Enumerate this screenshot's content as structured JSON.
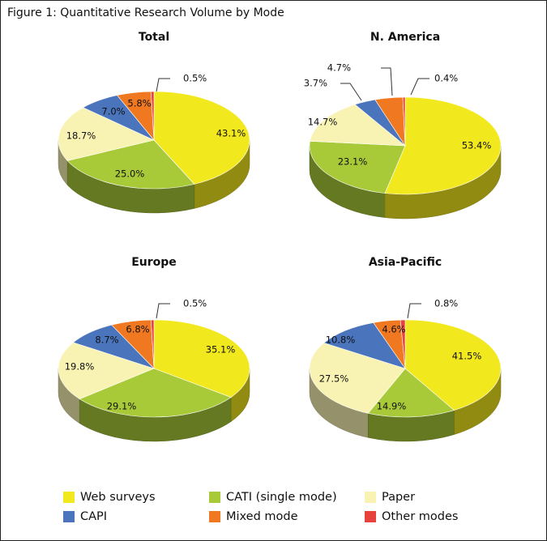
{
  "figure_title": "Figure 1: Quantitative Research Volume by Mode",
  "chart_data": [
    {
      "type": "pie",
      "title": "Total",
      "categories": [
        "Web surveys",
        "CATI (single mode)",
        "Paper",
        "CAPI",
        "Mixed mode",
        "Other modes"
      ],
      "values": [
        43.1,
        25.0,
        18.7,
        7.0,
        5.8,
        0.5
      ],
      "labels": [
        "43.1%",
        "25.0%",
        "18.7%",
        "7.0%",
        "5.8%",
        "0.5%"
      ]
    },
    {
      "type": "pie",
      "title": "N. America",
      "categories": [
        "Web surveys",
        "CATI (single mode)",
        "Paper",
        "CAPI",
        "Mixed mode",
        "Other modes"
      ],
      "values": [
        53.4,
        23.1,
        14.7,
        3.7,
        4.7,
        0.4
      ],
      "labels": [
        "53.4%",
        "23.1%",
        "14.7%",
        "3.7%",
        "4.7%",
        "0.4%"
      ]
    },
    {
      "type": "pie",
      "title": "Europe",
      "categories": [
        "Web surveys",
        "CATI (single mode)",
        "Paper",
        "CAPI",
        "Mixed mode",
        "Other modes"
      ],
      "values": [
        35.1,
        29.1,
        19.8,
        8.7,
        6.8,
        0.5
      ],
      "labels": [
        "35.1%",
        "29.1%",
        "19.8%",
        "8.7%",
        "6.8%",
        "0.5%"
      ]
    },
    {
      "type": "pie",
      "title": "Asia-Pacific",
      "categories": [
        "Web surveys",
        "CATI (single mode)",
        "Paper",
        "CAPI",
        "Mixed mode",
        "Other modes"
      ],
      "values": [
        41.5,
        14.9,
        27.5,
        10.8,
        4.6,
        0.8
      ],
      "labels": [
        "41.5%",
        "14.9%",
        "27.5%",
        "10.8%",
        "4.6%",
        "0.8%"
      ]
    }
  ],
  "legend": {
    "items": [
      {
        "label": "Web surveys",
        "color": "#f2e81e"
      },
      {
        "label": "CATI (single mode)",
        "color": "#a8ca38"
      },
      {
        "label": "Paper",
        "color": "#f8f3b2"
      },
      {
        "label": "CAPI",
        "color": "#4a74bb"
      },
      {
        "label": "Mixed mode",
        "color": "#f07820"
      },
      {
        "label": "Other modes",
        "color": "#e8423c"
      }
    ]
  }
}
